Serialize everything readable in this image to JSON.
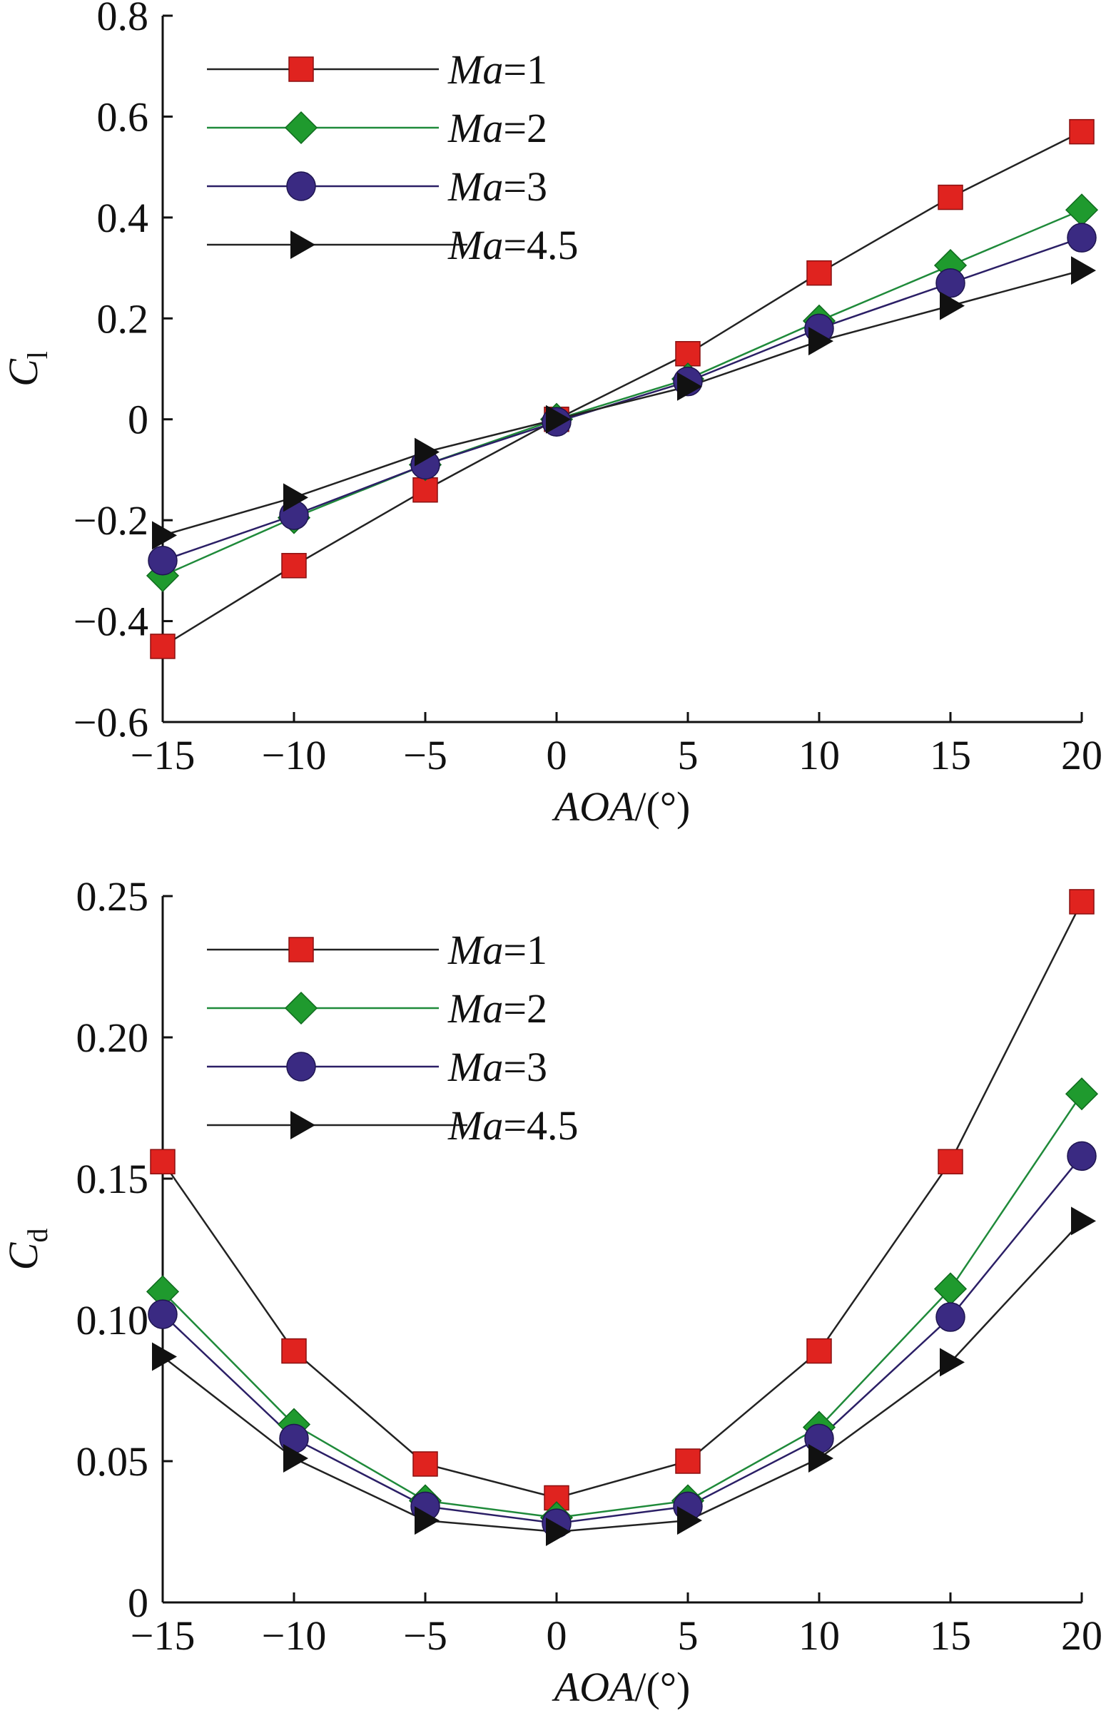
{
  "figure": {
    "colors": {
      "Ma=1": "#e0231f",
      "Ma=2": "#1f9a2e",
      "Ma=3": "#3a2a82",
      "Ma=4.5": "#111111"
    },
    "markers": {
      "Ma=1": "square",
      "Ma=2": "diamond",
      "Ma=3": "circle",
      "Ma=4.5": "triangle-right"
    },
    "line_colors": {
      "Ma=1": "#222222",
      "Ma=2": "#1f8a3a",
      "Ma=3": "#2b1f66",
      "Ma=4.5": "#222222"
    }
  },
  "chart_data": [
    {
      "type": "line",
      "id": "cl",
      "title": "",
      "xlabel": "AOA/(°)",
      "ylabel": "C",
      "ylabel_sub": "l",
      "xlim": [
        -15,
        20
      ],
      "ylim": [
        -0.6,
        0.8
      ],
      "x": [
        -15,
        -10,
        -5,
        0,
        5,
        10,
        15,
        20
      ],
      "xticks": [
        -15,
        -10,
        -5,
        0,
        5,
        10,
        15,
        20
      ],
      "xtick_labels": [
        "−15",
        "−10",
        "−5",
        "0",
        "5",
        "10",
        "15",
        "20"
      ],
      "yticks": [
        -0.6,
        -0.4,
        -0.2,
        0,
        0.2,
        0.4,
        0.6,
        0.8
      ],
      "ytick_labels": [
        "−0.6",
        "−0.4",
        "−0.2",
        "0",
        "0.2",
        "0.4",
        "0.6",
        "0.8"
      ],
      "legend": "top-left",
      "grid": false,
      "series": [
        {
          "name": "Ma=1",
          "name_italic": "Ma",
          "name_rest": "=1",
          "values": [
            -0.45,
            -0.29,
            -0.14,
            0.0,
            0.13,
            0.29,
            0.44,
            0.57
          ]
        },
        {
          "name": "Ma=2",
          "name_italic": "Ma",
          "name_rest": "=2",
          "values": [
            -0.31,
            -0.195,
            -0.09,
            0.0,
            0.08,
            0.195,
            0.305,
            0.415
          ]
        },
        {
          "name": "Ma=3",
          "name_italic": "Ma",
          "name_rest": "=3",
          "values": [
            -0.28,
            -0.19,
            -0.09,
            -0.005,
            0.075,
            0.18,
            0.27,
            0.36
          ]
        },
        {
          "name": "Ma=4.5",
          "name_italic": "Ma",
          "name_rest": "=4.5",
          "values": [
            -0.23,
            -0.155,
            -0.065,
            0.0,
            0.065,
            0.155,
            0.225,
            0.295
          ]
        }
      ]
    },
    {
      "type": "line",
      "id": "cd",
      "title": "",
      "xlabel": "AOA/(°)",
      "ylabel": "C",
      "ylabel_sub": "d",
      "xlim": [
        -15,
        20
      ],
      "ylim": [
        0,
        0.25
      ],
      "x": [
        -15,
        -10,
        -5,
        0,
        5,
        10,
        15,
        20
      ],
      "xticks": [
        -15,
        -10,
        -5,
        0,
        5,
        10,
        15,
        20
      ],
      "xtick_labels": [
        "−15",
        "−10",
        "−5",
        "0",
        "5",
        "10",
        "15",
        "20"
      ],
      "yticks": [
        0,
        0.05,
        0.1,
        0.15,
        0.2,
        0.25
      ],
      "ytick_labels": [
        "0",
        "0.05",
        "0.10",
        "0.15",
        "0.20",
        "0.25"
      ],
      "legend": "top-left",
      "grid": false,
      "series": [
        {
          "name": "Ma=1",
          "name_italic": "Ma",
          "name_rest": "=1",
          "values": [
            0.156,
            0.089,
            0.049,
            0.037,
            0.05,
            0.089,
            0.156,
            0.248
          ]
        },
        {
          "name": "Ma=2",
          "name_italic": "Ma",
          "name_rest": "=2",
          "values": [
            0.11,
            0.063,
            0.036,
            0.03,
            0.036,
            0.062,
            0.111,
            0.18
          ]
        },
        {
          "name": "Ma=3",
          "name_italic": "Ma",
          "name_rest": "=3",
          "values": [
            0.102,
            0.058,
            0.034,
            0.028,
            0.034,
            0.058,
            0.101,
            0.158
          ]
        },
        {
          "name": "Ma=4.5",
          "name_italic": "Ma",
          "name_rest": "=4.5",
          "values": [
            0.087,
            0.051,
            0.029,
            0.025,
            0.029,
            0.051,
            0.085,
            0.135
          ]
        }
      ]
    }
  ]
}
